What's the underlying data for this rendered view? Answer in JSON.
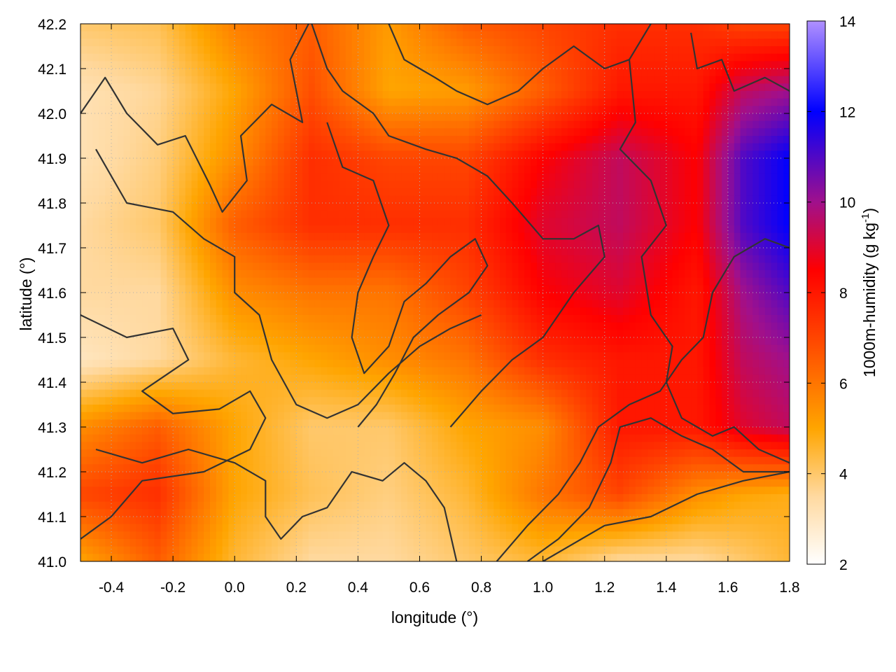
{
  "chart_data": {
    "type": "heatmap",
    "title": "",
    "xlabel": "longitude (°)",
    "ylabel": "latitude (°)",
    "colorbar_label": "1000m-humidity (g kg",
    "colorbar_label_sup": "-1",
    "colorbar_label_end": ")",
    "xlim": [
      -0.5,
      1.8
    ],
    "ylim": [
      41.0,
      42.2
    ],
    "clim": [
      2,
      14
    ],
    "x_ticks": [
      "-0.4",
      "-0.2",
      "0.0",
      "0.2",
      "0.4",
      "0.6",
      "0.8",
      "1.0",
      "1.2",
      "1.4",
      "1.6",
      "1.8"
    ],
    "y_ticks": [
      "41.0",
      "41.1",
      "41.2",
      "41.3",
      "41.4",
      "41.5",
      "41.6",
      "41.7",
      "41.8",
      "41.9",
      "42.0",
      "42.1",
      "42.2"
    ],
    "c_ticks": [
      "2",
      "4",
      "6",
      "8",
      "10",
      "12",
      "14"
    ],
    "grid": true,
    "colormap": [
      {
        "v": 2,
        "color": "#ffffff"
      },
      {
        "v": 3.5,
        "color": "#ffd9a0"
      },
      {
        "v": 5,
        "color": "#ffa500"
      },
      {
        "v": 7,
        "color": "#ff4500"
      },
      {
        "v": 8.5,
        "color": "#ff0000"
      },
      {
        "v": 10,
        "color": "#a0108c"
      },
      {
        "v": 12,
        "color": "#0000ff"
      },
      {
        "v": 14,
        "color": "#b090ff"
      }
    ],
    "humidity_field": {
      "x": [
        -0.5,
        -0.25,
        0.0,
        0.25,
        0.5,
        0.75,
        1.0,
        1.25,
        1.5,
        1.65,
        1.8
      ],
      "y": [
        42.2,
        42.05,
        41.9,
        41.75,
        41.6,
        41.45,
        41.3,
        41.15,
        41.0
      ],
      "values": [
        [
          4.0,
          4.2,
          5.8,
          6.5,
          5.2,
          6.5,
          7.0,
          7.5,
          7.5,
          7.0,
          7.0
        ],
        [
          3.2,
          3.6,
          5.0,
          6.8,
          5.0,
          5.2,
          6.5,
          8.0,
          8.0,
          9.5,
          10.0
        ],
        [
          3.2,
          3.8,
          5.5,
          7.5,
          7.0,
          7.0,
          8.5,
          9.5,
          8.5,
          11.0,
          12.0
        ],
        [
          3.5,
          4.0,
          6.5,
          7.5,
          7.5,
          7.5,
          9.0,
          9.5,
          8.5,
          11.0,
          12.0
        ],
        [
          3.5,
          3.5,
          5.5,
          6.0,
          6.0,
          7.0,
          8.5,
          9.0,
          8.0,
          10.0,
          11.0
        ],
        [
          3.0,
          3.5,
          4.5,
          5.0,
          5.5,
          6.0,
          7.5,
          8.0,
          8.0,
          9.5,
          10.0
        ],
        [
          5.5,
          6.5,
          5.0,
          4.0,
          4.0,
          5.0,
          5.5,
          8.0,
          8.0,
          9.0,
          9.5
        ],
        [
          7.0,
          7.5,
          5.0,
          4.2,
          3.8,
          4.5,
          6.0,
          7.0,
          5.5,
          5.0,
          4.8
        ],
        [
          5.0,
          6.5,
          4.5,
          3.5,
          3.5,
          4.0,
          4.5,
          3.5,
          3.5,
          4.0,
          4.5
        ]
      ]
    },
    "contours": [
      [
        [
          -0.5,
          42.0
        ],
        [
          -0.42,
          42.08
        ],
        [
          -0.35,
          42.0
        ],
        [
          -0.25,
          41.93
        ],
        [
          -0.16,
          41.95
        ],
        [
          -0.08,
          41.84
        ],
        [
          -0.04,
          41.78
        ],
        [
          0.04,
          41.85
        ],
        [
          0.02,
          41.95
        ],
        [
          0.12,
          42.02
        ],
        [
          0.22,
          41.98
        ],
        [
          0.18,
          42.12
        ],
        [
          0.24,
          42.2
        ]
      ],
      [
        [
          -0.45,
          41.92
        ],
        [
          -0.35,
          41.8
        ],
        [
          -0.2,
          41.78
        ],
        [
          -0.1,
          41.72
        ],
        [
          0.0,
          41.68
        ],
        [
          0.0,
          41.6
        ],
        [
          0.08,
          41.55
        ],
        [
          0.12,
          41.45
        ],
        [
          0.2,
          41.35
        ],
        [
          0.3,
          41.32
        ],
        [
          0.4,
          41.35
        ],
        [
          0.5,
          41.42
        ],
        [
          0.6,
          41.48
        ],
        [
          0.7,
          41.52
        ],
        [
          0.8,
          41.55
        ]
      ],
      [
        [
          -0.5,
          41.55
        ],
        [
          -0.35,
          41.5
        ],
        [
          -0.2,
          41.52
        ],
        [
          -0.15,
          41.45
        ],
        [
          -0.3,
          41.38
        ],
        [
          -0.2,
          41.33
        ],
        [
          -0.05,
          41.34
        ],
        [
          0.05,
          41.38
        ],
        [
          0.1,
          41.32
        ],
        [
          0.05,
          41.25
        ],
        [
          -0.1,
          41.2
        ],
        [
          -0.3,
          41.18
        ],
        [
          -0.4,
          41.1
        ],
        [
          -0.5,
          41.05
        ]
      ],
      [
        [
          -0.45,
          41.25
        ],
        [
          -0.3,
          41.22
        ],
        [
          -0.15,
          41.25
        ],
        [
          0.0,
          41.22
        ],
        [
          0.1,
          41.18
        ],
        [
          0.1,
          41.1
        ],
        [
          0.15,
          41.05
        ],
        [
          0.22,
          41.1
        ],
        [
          0.3,
          41.12
        ],
        [
          0.38,
          41.2
        ],
        [
          0.48,
          41.18
        ],
        [
          0.55,
          41.22
        ],
        [
          0.62,
          41.18
        ],
        [
          0.68,
          41.12
        ],
        [
          0.72,
          41.0
        ]
      ],
      [
        [
          0.25,
          42.2
        ],
        [
          0.3,
          42.1
        ],
        [
          0.35,
          42.05
        ],
        [
          0.45,
          42.0
        ],
        [
          0.5,
          41.95
        ],
        [
          0.62,
          41.92
        ],
        [
          0.72,
          41.9
        ],
        [
          0.82,
          41.86
        ],
        [
          0.9,
          41.8
        ],
        [
          1.0,
          41.72
        ],
        [
          1.1,
          41.72
        ],
        [
          1.18,
          41.75
        ],
        [
          1.2,
          41.68
        ],
        [
          1.1,
          41.6
        ],
        [
          1.0,
          41.5
        ],
        [
          0.9,
          41.45
        ],
        [
          0.8,
          41.38
        ],
        [
          0.7,
          41.3
        ]
      ],
      [
        [
          0.5,
          42.2
        ],
        [
          0.55,
          42.12
        ],
        [
          0.6,
          42.1
        ],
        [
          0.65,
          42.08
        ],
        [
          0.72,
          42.05
        ],
        [
          0.82,
          42.02
        ],
        [
          0.92,
          42.05
        ],
        [
          1.0,
          42.1
        ],
        [
          1.1,
          42.15
        ],
        [
          1.2,
          42.1
        ],
        [
          1.28,
          42.12
        ],
        [
          1.35,
          42.2
        ]
      ],
      [
        [
          1.28,
          42.12
        ],
        [
          1.3,
          41.98
        ],
        [
          1.25,
          41.92
        ],
        [
          1.35,
          41.85
        ],
        [
          1.4,
          41.75
        ],
        [
          1.32,
          41.68
        ],
        [
          1.35,
          41.55
        ],
        [
          1.42,
          41.48
        ],
        [
          1.4,
          41.4
        ],
        [
          1.45,
          41.32
        ],
        [
          1.55,
          41.28
        ],
        [
          1.62,
          41.3
        ],
        [
          1.7,
          41.25
        ],
        [
          1.8,
          41.22
        ]
      ],
      [
        [
          0.95,
          41.0
        ],
        [
          1.05,
          41.05
        ],
        [
          1.15,
          41.12
        ],
        [
          1.22,
          41.22
        ],
        [
          1.25,
          41.3
        ],
        [
          1.35,
          41.32
        ],
        [
          1.45,
          41.28
        ],
        [
          1.55,
          41.25
        ],
        [
          1.65,
          41.2
        ],
        [
          1.8,
          41.2
        ]
      ],
      [
        [
          0.85,
          41.0
        ],
        [
          0.95,
          41.08
        ],
        [
          1.05,
          41.15
        ],
        [
          1.12,
          41.22
        ],
        [
          1.18,
          41.3
        ],
        [
          1.28,
          41.35
        ],
        [
          1.38,
          41.38
        ],
        [
          1.45,
          41.45
        ],
        [
          1.52,
          41.5
        ],
        [
          1.55,
          41.6
        ],
        [
          1.62,
          41.68
        ],
        [
          1.72,
          41.72
        ],
        [
          1.8,
          41.7
        ]
      ],
      [
        [
          1.48,
          42.18
        ],
        [
          1.5,
          42.1
        ],
        [
          1.58,
          42.12
        ],
        [
          1.62,
          42.05
        ],
        [
          1.72,
          42.08
        ],
        [
          1.8,
          42.05
        ]
      ],
      [
        [
          1.0,
          41.0
        ],
        [
          1.2,
          41.08
        ],
        [
          1.35,
          41.1
        ],
        [
          1.5,
          41.15
        ],
        [
          1.65,
          41.18
        ],
        [
          1.8,
          41.2
        ]
      ],
      [
        [
          0.3,
          41.98
        ],
        [
          0.35,
          41.88
        ],
        [
          0.45,
          41.85
        ],
        [
          0.5,
          41.75
        ],
        [
          0.45,
          41.68
        ],
        [
          0.4,
          41.6
        ],
        [
          0.38,
          41.5
        ],
        [
          0.42,
          41.42
        ],
        [
          0.5,
          41.48
        ],
        [
          0.55,
          41.58
        ],
        [
          0.62,
          41.62
        ],
        [
          0.7,
          41.68
        ],
        [
          0.78,
          41.72
        ],
        [
          0.82,
          41.66
        ],
        [
          0.76,
          41.6
        ],
        [
          0.66,
          41.55
        ],
        [
          0.58,
          41.5
        ],
        [
          0.52,
          41.42
        ],
        [
          0.46,
          41.35
        ],
        [
          0.4,
          41.3
        ]
      ]
    ]
  }
}
